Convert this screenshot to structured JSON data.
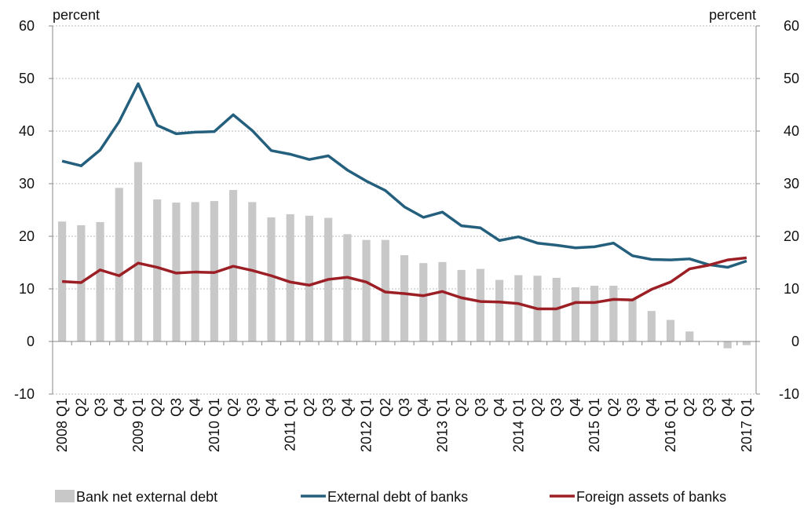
{
  "chart_data": {
    "type": "bar",
    "y_label": "percent",
    "y2_label": "percent",
    "categories": [
      "2008 Q1",
      "Q2",
      "Q3",
      "Q4",
      "2009 Q1",
      "Q2",
      "Q3",
      "Q4",
      "2010 Q1",
      "Q2",
      "Q3",
      "Q4",
      "2011 Q1",
      "Q2",
      "Q3",
      "Q4",
      "2012 Q1",
      "Q2",
      "Q3",
      "Q4",
      "2013 Q1",
      "Q2",
      "Q3",
      "Q4",
      "2014 Q1",
      "Q2",
      "Q3",
      "Q4",
      "2015 Q1",
      "Q2",
      "Q3",
      "Q4",
      "2016 Q1",
      "Q2",
      "Q3",
      "Q4",
      "2017 Q1"
    ],
    "series": [
      {
        "name": "Bank net external debt",
        "type": "bar",
        "color": "#c8c8c8",
        "values": [
          22.8,
          22.1,
          22.7,
          29.2,
          34.1,
          27.0,
          26.4,
          26.5,
          26.7,
          28.8,
          26.5,
          23.6,
          24.2,
          23.9,
          23.5,
          20.4,
          19.3,
          19.3,
          16.4,
          14.9,
          15.1,
          13.6,
          13.8,
          11.7,
          12.6,
          12.5,
          12.1,
          10.3,
          10.6,
          10.6,
          8.0,
          5.8,
          4.1,
          1.9,
          0.1,
          -1.3,
          -0.7
        ]
      },
      {
        "name": "External debt of banks",
        "type": "line",
        "color": "#24607e",
        "values": [
          34.3,
          33.4,
          36.4,
          41.8,
          49.0,
          41.1,
          39.5,
          39.8,
          39.9,
          43.1,
          40.1,
          36.3,
          35.6,
          34.6,
          35.3,
          32.6,
          30.5,
          28.7,
          25.6,
          23.6,
          24.6,
          22.0,
          21.6,
          19.2,
          19.9,
          18.7,
          18.3,
          17.8,
          18.0,
          18.7,
          16.3,
          15.6,
          15.5,
          15.7,
          14.6,
          14.1,
          15.3
        ]
      },
      {
        "name": "Foreign assets of banks",
        "type": "line",
        "color": "#9b1f24",
        "values": [
          11.4,
          11.2,
          13.6,
          12.5,
          14.9,
          14.1,
          13.0,
          13.2,
          13.1,
          14.3,
          13.5,
          12.5,
          11.3,
          10.7,
          11.8,
          12.2,
          11.3,
          9.4,
          9.1,
          8.7,
          9.5,
          8.3,
          7.6,
          7.5,
          7.2,
          6.2,
          6.2,
          7.4,
          7.4,
          8.0,
          7.9,
          9.9,
          11.3,
          13.8,
          14.5,
          15.5,
          15.9
        ]
      }
    ],
    "ylim": [
      -10,
      60
    ],
    "yticks": [
      -10,
      0,
      10,
      20,
      30,
      40,
      50,
      60
    ],
    "y2lim": [
      -10,
      60
    ],
    "y2ticks": [
      -10,
      0,
      10,
      20,
      30,
      40,
      50,
      60
    ],
    "grid": true
  }
}
